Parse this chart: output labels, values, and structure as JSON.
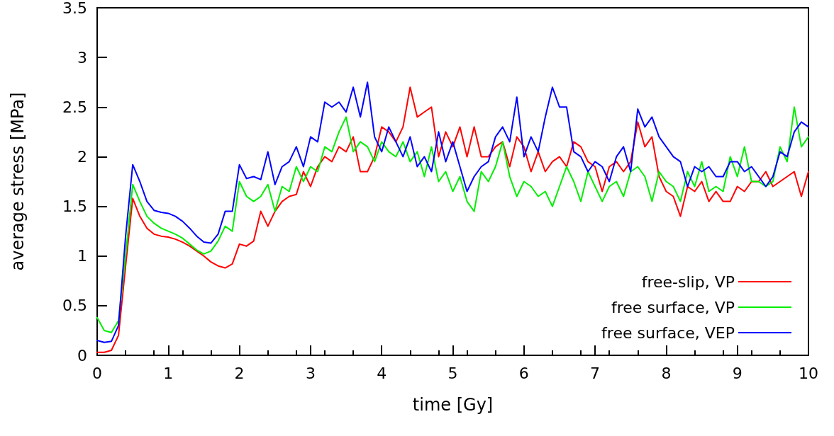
{
  "chart_data": {
    "type": "line",
    "xlabel": "time [Gy]",
    "ylabel": "average stress [MPa]",
    "x": [
      0,
      0.1,
      0.2,
      0.3,
      0.4,
      0.5,
      0.6,
      0.7,
      0.8,
      0.9,
      1,
      1.1,
      1.2,
      1.3,
      1.4,
      1.5,
      1.6,
      1.7,
      1.8,
      1.9,
      2,
      2.1,
      2.2,
      2.3,
      2.4,
      2.5,
      2.6,
      2.7,
      2.8,
      2.9,
      3,
      3.1,
      3.2,
      3.3,
      3.4,
      3.5,
      3.6,
      3.7,
      3.8,
      3.9,
      4,
      4.1,
      4.2,
      4.3,
      4.4,
      4.5,
      4.6,
      4.7,
      4.8,
      4.9,
      5,
      5.1,
      5.2,
      5.3,
      5.4,
      5.5,
      5.6,
      5.7,
      5.8,
      5.9,
      6,
      6.1,
      6.2,
      6.3,
      6.4,
      6.5,
      6.6,
      6.7,
      6.8,
      6.9,
      7,
      7.1,
      7.2,
      7.3,
      7.4,
      7.5,
      7.6,
      7.7,
      7.8,
      7.9,
      8,
      8.1,
      8.2,
      8.3,
      8.4,
      8.5,
      8.6,
      8.7,
      8.8,
      8.9,
      9,
      9.1,
      9.2,
      9.3,
      9.4,
      9.5,
      9.6,
      9.7,
      9.8,
      9.9,
      10
    ],
    "series": [
      {
        "name": "free-slip, VP",
        "color": "#ff0000",
        "values": [
          0.03,
          0.03,
          0.05,
          0.2,
          0.9,
          1.58,
          1.4,
          1.28,
          1.22,
          1.2,
          1.19,
          1.17,
          1.14,
          1.1,
          1.05,
          1.0,
          0.94,
          0.9,
          0.88,
          0.92,
          1.12,
          1.1,
          1.15,
          1.45,
          1.3,
          1.45,
          1.55,
          1.6,
          1.62,
          1.85,
          1.7,
          1.9,
          2.0,
          1.95,
          2.1,
          2.05,
          2.2,
          1.85,
          1.85,
          2.0,
          2.3,
          2.25,
          2.15,
          2.3,
          2.7,
          2.4,
          2.45,
          2.5,
          2.0,
          2.25,
          2.1,
          2.3,
          2.0,
          2.3,
          2.0,
          2.0,
          2.1,
          2.15,
          1.9,
          2.2,
          2.1,
          1.85,
          2.05,
          1.85,
          1.95,
          2.0,
          1.9,
          2.15,
          2.1,
          1.95,
          1.9,
          1.65,
          1.9,
          1.95,
          1.85,
          1.95,
          2.35,
          2.1,
          2.2,
          1.8,
          1.65,
          1.6,
          1.4,
          1.7,
          1.65,
          1.75,
          1.55,
          1.65,
          1.55,
          1.55,
          1.7,
          1.65,
          1.75,
          1.75,
          1.85,
          1.7,
          1.75,
          1.8,
          1.85,
          1.6,
          1.85
        ]
      },
      {
        "name": "free surface, VP",
        "color": "#00ee00",
        "values": [
          0.38,
          0.25,
          0.23,
          0.35,
          1.0,
          1.72,
          1.55,
          1.4,
          1.33,
          1.28,
          1.25,
          1.22,
          1.18,
          1.12,
          1.06,
          1.02,
          1.05,
          1.15,
          1.3,
          1.25,
          1.75,
          1.6,
          1.55,
          1.6,
          1.72,
          1.45,
          1.7,
          1.65,
          1.9,
          1.75,
          1.9,
          1.85,
          2.1,
          2.05,
          2.25,
          2.4,
          2.05,
          2.15,
          2.1,
          1.95,
          2.15,
          2.05,
          2.0,
          2.15,
          1.95,
          2.05,
          1.8,
          2.1,
          1.75,
          1.85,
          1.65,
          1.8,
          1.55,
          1.45,
          1.85,
          1.75,
          1.9,
          2.15,
          1.8,
          1.6,
          1.75,
          1.7,
          1.6,
          1.65,
          1.5,
          1.7,
          1.9,
          1.75,
          1.55,
          1.85,
          1.7,
          1.55,
          1.7,
          1.75,
          1.6,
          1.85,
          1.9,
          1.8,
          1.55,
          1.85,
          1.75,
          1.7,
          1.55,
          1.85,
          1.7,
          1.95,
          1.65,
          1.7,
          1.65,
          2.0,
          1.8,
          2.1,
          1.75,
          1.75,
          1.7,
          1.75,
          2.1,
          1.95,
          2.5,
          2.1,
          2.2
        ]
      },
      {
        "name": "free surface, VEP",
        "color": "#0000ff",
        "values": [
          0.15,
          0.13,
          0.14,
          0.3,
          1.2,
          1.92,
          1.75,
          1.55,
          1.46,
          1.44,
          1.43,
          1.4,
          1.35,
          1.28,
          1.2,
          1.14,
          1.13,
          1.22,
          1.45,
          1.45,
          1.92,
          1.78,
          1.8,
          1.77,
          2.05,
          1.72,
          1.9,
          1.95,
          2.1,
          1.9,
          2.2,
          2.15,
          2.55,
          2.5,
          2.55,
          2.45,
          2.7,
          2.4,
          2.75,
          2.2,
          2.05,
          2.3,
          2.15,
          2.0,
          2.2,
          1.9,
          2.0,
          1.85,
          2.25,
          1.95,
          2.15,
          1.9,
          1.65,
          1.8,
          1.9,
          1.95,
          2.2,
          2.3,
          2.15,
          2.6,
          2.0,
          2.2,
          2.05,
          2.4,
          2.7,
          2.5,
          2.5,
          2.05,
          2.0,
          1.85,
          1.95,
          1.9,
          1.75,
          2.0,
          2.1,
          1.85,
          2.48,
          2.3,
          2.4,
          2.2,
          2.1,
          2.0,
          1.95,
          1.7,
          1.9,
          1.85,
          1.9,
          1.8,
          1.8,
          1.95,
          1.95,
          1.85,
          1.9,
          1.8,
          1.7,
          1.8,
          2.05,
          2.0,
          2.25,
          2.35,
          2.3
        ]
      }
    ],
    "xlim": [
      0,
      10
    ],
    "xticks": [
      0,
      1,
      2,
      3,
      4,
      5,
      6,
      7,
      8,
      9,
      10
    ],
    "ylim": [
      0,
      3.5
    ],
    "yticks": [
      0,
      0.5,
      1,
      1.5,
      2,
      2.5,
      3,
      3.5
    ],
    "legend": "bottom right",
    "marker": "none",
    "line_style": "solid",
    "grid": false
  }
}
